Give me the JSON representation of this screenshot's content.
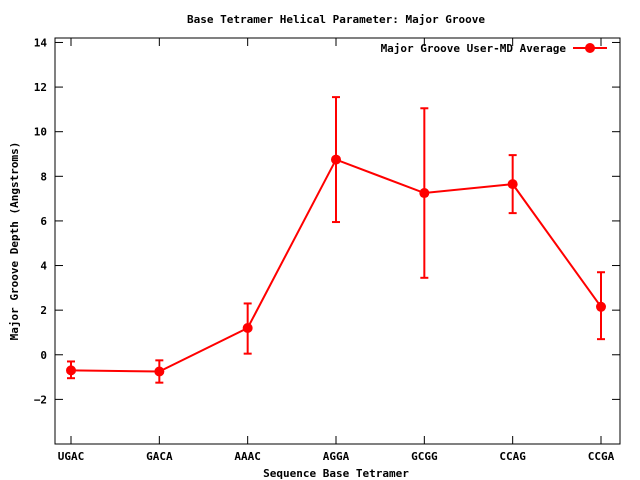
{
  "chart_data": {
    "type": "line",
    "title": "Base Tetramer Helical Parameter: Major Groove",
    "xlabel": "Sequence Base Tetramer",
    "ylabel": "Major Groove Depth (Angstroms)",
    "categories": [
      "UGAC",
      "GACA",
      "AAAC",
      "AGGA",
      "GCGG",
      "CCAG",
      "CCGA"
    ],
    "ylim": [
      -4,
      14.2
    ],
    "yticks": [
      -2,
      0,
      2,
      4,
      6,
      8,
      10,
      12,
      14
    ],
    "grid": false,
    "legend_position": "top-right",
    "series": [
      {
        "name": "Major Groove User-MD Average",
        "color": "#ff0000",
        "values": [
          -0.7,
          -0.75,
          1.2,
          8.75,
          7.25,
          7.65,
          2.15
        ],
        "err_low": [
          -1.05,
          -1.25,
          0.05,
          5.95,
          3.45,
          6.35,
          0.7
        ],
        "err_high": [
          -0.3,
          -0.25,
          2.3,
          11.55,
          11.05,
          8.95,
          3.7
        ]
      }
    ]
  }
}
